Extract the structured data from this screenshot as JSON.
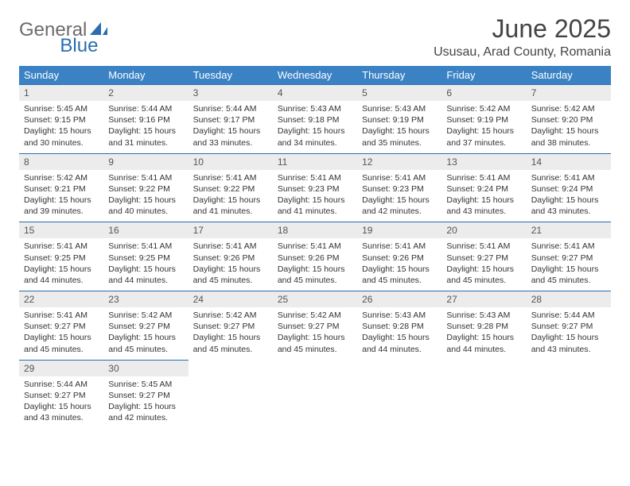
{
  "logo": {
    "part1": "General",
    "part2": "Blue"
  },
  "header": {
    "title": "June 2025",
    "location": "Ususau, Arad County, Romania"
  },
  "colors": {
    "header_bg": "#3b82c4",
    "header_text": "#ffffff",
    "daynum_bg": "#ececec",
    "rule": "#2a6db0",
    "logo_gray": "#6b6b6b",
    "logo_blue": "#2a6db0"
  },
  "weekdays": [
    "Sunday",
    "Monday",
    "Tuesday",
    "Wednesday",
    "Thursday",
    "Friday",
    "Saturday"
  ],
  "weeks": [
    [
      {
        "n": "1",
        "sr": "Sunrise: 5:45 AM",
        "ss": "Sunset: 9:15 PM",
        "dl": "Daylight: 15 hours and 30 minutes."
      },
      {
        "n": "2",
        "sr": "Sunrise: 5:44 AM",
        "ss": "Sunset: 9:16 PM",
        "dl": "Daylight: 15 hours and 31 minutes."
      },
      {
        "n": "3",
        "sr": "Sunrise: 5:44 AM",
        "ss": "Sunset: 9:17 PM",
        "dl": "Daylight: 15 hours and 33 minutes."
      },
      {
        "n": "4",
        "sr": "Sunrise: 5:43 AM",
        "ss": "Sunset: 9:18 PM",
        "dl": "Daylight: 15 hours and 34 minutes."
      },
      {
        "n": "5",
        "sr": "Sunrise: 5:43 AM",
        "ss": "Sunset: 9:19 PM",
        "dl": "Daylight: 15 hours and 35 minutes."
      },
      {
        "n": "6",
        "sr": "Sunrise: 5:42 AM",
        "ss": "Sunset: 9:19 PM",
        "dl": "Daylight: 15 hours and 37 minutes."
      },
      {
        "n": "7",
        "sr": "Sunrise: 5:42 AM",
        "ss": "Sunset: 9:20 PM",
        "dl": "Daylight: 15 hours and 38 minutes."
      }
    ],
    [
      {
        "n": "8",
        "sr": "Sunrise: 5:42 AM",
        "ss": "Sunset: 9:21 PM",
        "dl": "Daylight: 15 hours and 39 minutes."
      },
      {
        "n": "9",
        "sr": "Sunrise: 5:41 AM",
        "ss": "Sunset: 9:22 PM",
        "dl": "Daylight: 15 hours and 40 minutes."
      },
      {
        "n": "10",
        "sr": "Sunrise: 5:41 AM",
        "ss": "Sunset: 9:22 PM",
        "dl": "Daylight: 15 hours and 41 minutes."
      },
      {
        "n": "11",
        "sr": "Sunrise: 5:41 AM",
        "ss": "Sunset: 9:23 PM",
        "dl": "Daylight: 15 hours and 41 minutes."
      },
      {
        "n": "12",
        "sr": "Sunrise: 5:41 AM",
        "ss": "Sunset: 9:23 PM",
        "dl": "Daylight: 15 hours and 42 minutes."
      },
      {
        "n": "13",
        "sr": "Sunrise: 5:41 AM",
        "ss": "Sunset: 9:24 PM",
        "dl": "Daylight: 15 hours and 43 minutes."
      },
      {
        "n": "14",
        "sr": "Sunrise: 5:41 AM",
        "ss": "Sunset: 9:24 PM",
        "dl": "Daylight: 15 hours and 43 minutes."
      }
    ],
    [
      {
        "n": "15",
        "sr": "Sunrise: 5:41 AM",
        "ss": "Sunset: 9:25 PM",
        "dl": "Daylight: 15 hours and 44 minutes."
      },
      {
        "n": "16",
        "sr": "Sunrise: 5:41 AM",
        "ss": "Sunset: 9:25 PM",
        "dl": "Daylight: 15 hours and 44 minutes."
      },
      {
        "n": "17",
        "sr": "Sunrise: 5:41 AM",
        "ss": "Sunset: 9:26 PM",
        "dl": "Daylight: 15 hours and 45 minutes."
      },
      {
        "n": "18",
        "sr": "Sunrise: 5:41 AM",
        "ss": "Sunset: 9:26 PM",
        "dl": "Daylight: 15 hours and 45 minutes."
      },
      {
        "n": "19",
        "sr": "Sunrise: 5:41 AM",
        "ss": "Sunset: 9:26 PM",
        "dl": "Daylight: 15 hours and 45 minutes."
      },
      {
        "n": "20",
        "sr": "Sunrise: 5:41 AM",
        "ss": "Sunset: 9:27 PM",
        "dl": "Daylight: 15 hours and 45 minutes."
      },
      {
        "n": "21",
        "sr": "Sunrise: 5:41 AM",
        "ss": "Sunset: 9:27 PM",
        "dl": "Daylight: 15 hours and 45 minutes."
      }
    ],
    [
      {
        "n": "22",
        "sr": "Sunrise: 5:41 AM",
        "ss": "Sunset: 9:27 PM",
        "dl": "Daylight: 15 hours and 45 minutes."
      },
      {
        "n": "23",
        "sr": "Sunrise: 5:42 AM",
        "ss": "Sunset: 9:27 PM",
        "dl": "Daylight: 15 hours and 45 minutes."
      },
      {
        "n": "24",
        "sr": "Sunrise: 5:42 AM",
        "ss": "Sunset: 9:27 PM",
        "dl": "Daylight: 15 hours and 45 minutes."
      },
      {
        "n": "25",
        "sr": "Sunrise: 5:42 AM",
        "ss": "Sunset: 9:27 PM",
        "dl": "Daylight: 15 hours and 45 minutes."
      },
      {
        "n": "26",
        "sr": "Sunrise: 5:43 AM",
        "ss": "Sunset: 9:28 PM",
        "dl": "Daylight: 15 hours and 44 minutes."
      },
      {
        "n": "27",
        "sr": "Sunrise: 5:43 AM",
        "ss": "Sunset: 9:28 PM",
        "dl": "Daylight: 15 hours and 44 minutes."
      },
      {
        "n": "28",
        "sr": "Sunrise: 5:44 AM",
        "ss": "Sunset: 9:27 PM",
        "dl": "Daylight: 15 hours and 43 minutes."
      }
    ],
    [
      {
        "n": "29",
        "sr": "Sunrise: 5:44 AM",
        "ss": "Sunset: 9:27 PM",
        "dl": "Daylight: 15 hours and 43 minutes."
      },
      {
        "n": "30",
        "sr": "Sunrise: 5:45 AM",
        "ss": "Sunset: 9:27 PM",
        "dl": "Daylight: 15 hours and 42 minutes."
      },
      null,
      null,
      null,
      null,
      null
    ]
  ]
}
